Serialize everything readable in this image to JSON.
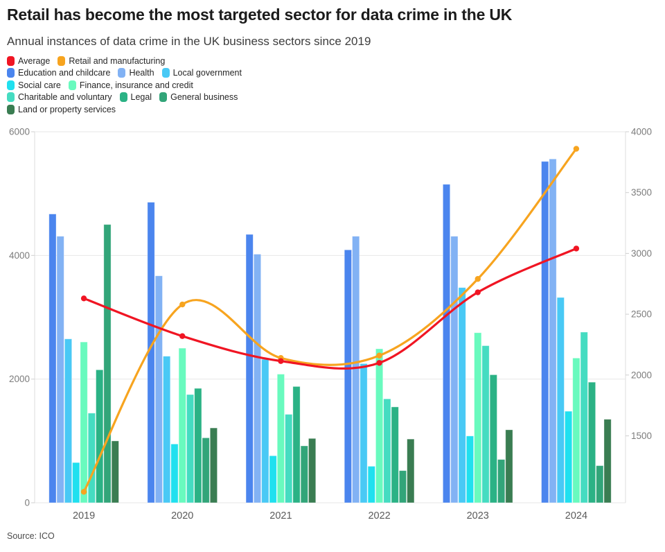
{
  "header": {
    "title": "Retail has become the most targeted sector for data crime in the UK",
    "subtitle": "Annual instances of data crime in the UK business sectors since 2019"
  },
  "source": "Source: ICO",
  "chart_data": {
    "type": "bar+line",
    "title": "Retail has become the most targeted sector for data crime in the UK",
    "subtitle": "Annual instances of data crime in the UK business sectors since 2019",
    "categories": [
      "2019",
      "2020",
      "2021",
      "2022",
      "2023",
      "2024"
    ],
    "bar_series": [
      {
        "name": "Education and childcare",
        "color": "#4b85ee",
        "values": [
          4670,
          4860,
          4340,
          4090,
          5150,
          5520
        ]
      },
      {
        "name": "Health",
        "color": "#82b2f4",
        "values": [
          4310,
          3670,
          4020,
          4310,
          4310,
          5560
        ]
      },
      {
        "name": "Local government",
        "color": "#49c9f5",
        "values": [
          2650,
          2370,
          2320,
          2250,
          3480,
          3320
        ]
      },
      {
        "name": "Social care",
        "color": "#20e0ef",
        "values": [
          650,
          950,
          760,
          590,
          1080,
          1480
        ]
      },
      {
        "name": "Finance, insurance and credit",
        "color": "#69fabe",
        "values": [
          2600,
          2500,
          2080,
          2490,
          2750,
          2340
        ]
      },
      {
        "name": "Charitable and voluntary",
        "color": "#45dcc1",
        "values": [
          1450,
          1750,
          1430,
          1680,
          2540,
          2760
        ]
      },
      {
        "name": "Legal",
        "color": "#2bb285",
        "values": [
          2150,
          1850,
          1880,
          1550,
          2070,
          1950
        ]
      },
      {
        "name": "General business",
        "color": "#32a579",
        "values": [
          4500,
          1050,
          920,
          520,
          700,
          600
        ]
      },
      {
        "name": "Land or property services",
        "color": "#3a7d52",
        "values": [
          1000,
          1210,
          1040,
          1030,
          1180,
          1350
        ]
      }
    ],
    "line_series": [
      {
        "name": "Retail and manufacturing",
        "color": "#f7a41f",
        "axis": "right",
        "values": [
          1040,
          2580,
          2140,
          2160,
          2790,
          3860
        ]
      },
      {
        "name": "Average",
        "color": "#f01523",
        "axis": "right",
        "values": [
          2630,
          2320,
          2115,
          2100,
          2680,
          3040
        ]
      }
    ],
    "left_axis": {
      "min": 0,
      "max": 6000,
      "ticks": [
        0,
        2000,
        4000,
        6000
      ]
    },
    "right_axis": {
      "min": 950,
      "max": 4000,
      "ticks": [
        1500,
        2000,
        2500,
        3000,
        3500,
        4000
      ]
    },
    "legend_rows": [
      [
        "Average",
        "Retail and manufacturing"
      ],
      [
        "Education and childcare",
        "Health",
        "Local government"
      ],
      [
        "Social care",
        "Finance, insurance and credit"
      ],
      [
        "Charitable and voluntary",
        "Legal",
        "General business"
      ],
      [
        "Land or property services"
      ]
    ],
    "grid": "horizontal",
    "legend_position": "top-left"
  }
}
